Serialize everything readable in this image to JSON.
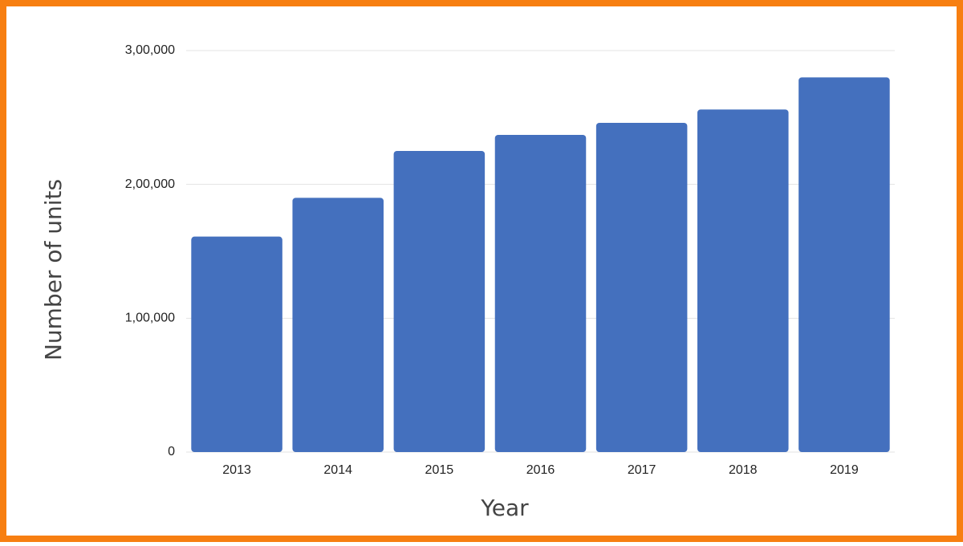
{
  "chart_data": {
    "type": "bar",
    "x_label": "Year",
    "y_label": "Number of units",
    "categories": [
      "2013",
      "2014",
      "2015",
      "2016",
      "2017",
      "2018",
      "2019"
    ],
    "values": [
      161000,
      190000,
      225000,
      237000,
      246000,
      256000,
      280000
    ],
    "color": "#4470be",
    "ylim": [
      0,
      300000
    ],
    "yticks": [
      0,
      {
        "value": 100000,
        "label": "1,00,000"
      },
      {
        "value": 200000,
        "label": "2,00,000"
      },
      {
        "value": 300000,
        "label": "3,00,000"
      }
    ],
    "grid": true
  }
}
